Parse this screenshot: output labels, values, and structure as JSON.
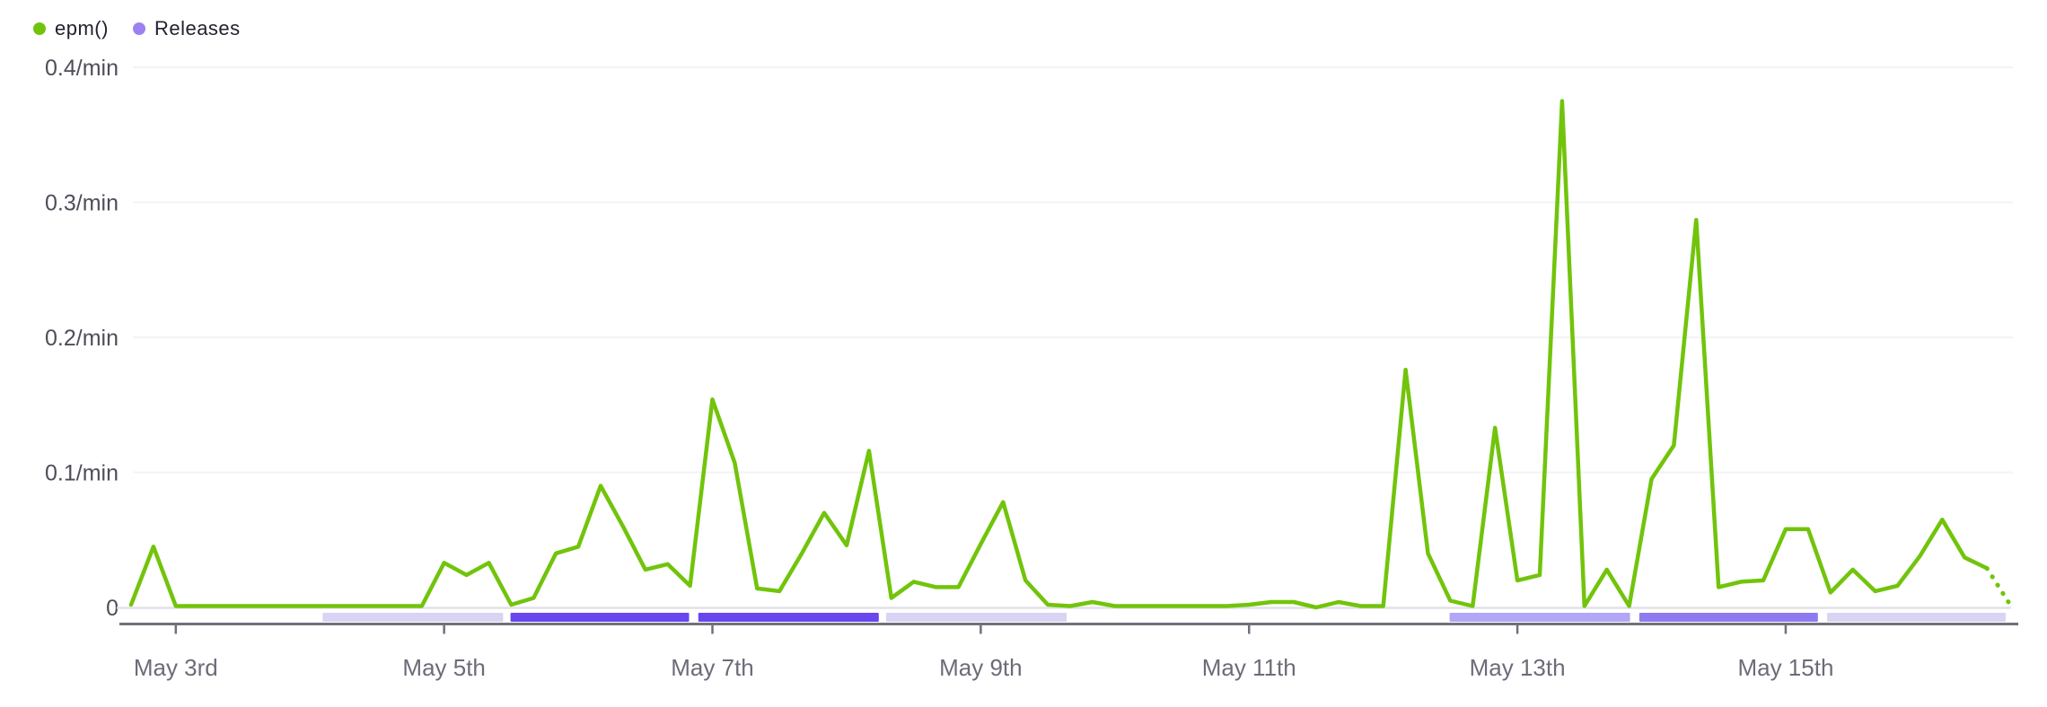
{
  "legend": {
    "items": [
      {
        "label": "epm()",
        "color": "#71c40b"
      },
      {
        "label": "Releases",
        "color": "#9d80f2"
      }
    ]
  },
  "chart_data": {
    "type": "line",
    "title": "epm()",
    "unit": "events per minute",
    "grid": true,
    "legend_position": "top-left",
    "x_axis": {
      "tick_labels": [
        "May 3rd",
        "May 5th",
        "May 7th",
        "May 9th",
        "May 11th",
        "May 13th",
        "May 15th"
      ],
      "tick_indices": [
        2,
        14,
        26,
        38,
        50,
        62,
        74
      ],
      "start": "May 2 16:00",
      "end": "May 16 16:00",
      "bucket_hours": 4
    },
    "y_axis": {
      "min": 0,
      "max": 0.4,
      "tick_values": [
        0,
        0.1,
        0.2,
        0.3,
        0.4
      ],
      "tick_labels": [
        "0",
        "0.1/min",
        "0.2/min",
        "0.3/min",
        "0.4/min"
      ]
    },
    "series": [
      {
        "name": "epm()",
        "color": "#71c40b",
        "dashed_from_index": 83,
        "values": [
          0.002,
          0.045,
          0.001,
          0.001,
          0.001,
          0.001,
          0.001,
          0.001,
          0.001,
          0.001,
          0.001,
          0.001,
          0.001,
          0.001,
          0.033,
          0.024,
          0.033,
          0.002,
          0.007,
          0.04,
          0.045,
          0.09,
          0.06,
          0.028,
          0.032,
          0.016,
          0.154,
          0.107,
          0.014,
          0.012,
          0.04,
          0.07,
          0.046,
          0.116,
          0.007,
          0.019,
          0.015,
          0.015,
          0.047,
          0.078,
          0.02,
          0.002,
          0.001,
          0.004,
          0.001,
          0.001,
          0.001,
          0.001,
          0.001,
          0.001,
          0.002,
          0.004,
          0.004,
          0.0,
          0.004,
          0.001,
          0.001,
          0.176,
          0.04,
          0.005,
          0.001,
          0.133,
          0.02,
          0.024,
          0.375,
          0.001,
          0.028,
          0.001,
          0.095,
          0.12,
          0.287,
          0.015,
          0.019,
          0.02,
          0.058,
          0.058,
          0.011,
          0.028,
          0.012,
          0.016,
          0.038,
          0.065,
          0.037,
          0.029,
          0.003
        ]
      }
    ],
    "releases": {
      "name": "Releases",
      "shade_colors": {
        "light": "#d9d4f4",
        "medium_light": "#b2a6f6",
        "medium": "#8f7bef",
        "dark": "#6847ee"
      },
      "bars": [
        {
          "from_frac": 0.102,
          "to_frac": 0.2,
          "shade": "light"
        },
        {
          "from_frac": 0.202,
          "to_frac": 0.299,
          "shade": "dark"
        },
        {
          "from_frac": 0.302,
          "to_frac": 0.4,
          "shade": "dark"
        },
        {
          "from_frac": 0.402,
          "to_frac": 0.5,
          "shade": "light"
        },
        {
          "from_frac": 0.702,
          "to_frac": 0.8,
          "shade": "medium_light"
        },
        {
          "from_frac": 0.803,
          "to_frac": 0.9,
          "shade": "medium"
        },
        {
          "from_frac": 0.903,
          "to_frac": 1.0,
          "shade": "light"
        }
      ]
    },
    "style": {
      "gridline_color": "#f3f2f6",
      "zero_line_color": "#e3e1e8",
      "axis_line_color": "#716f7a",
      "y_label_color": "#514c5a",
      "x_label_color": "#6f6a78"
    }
  }
}
